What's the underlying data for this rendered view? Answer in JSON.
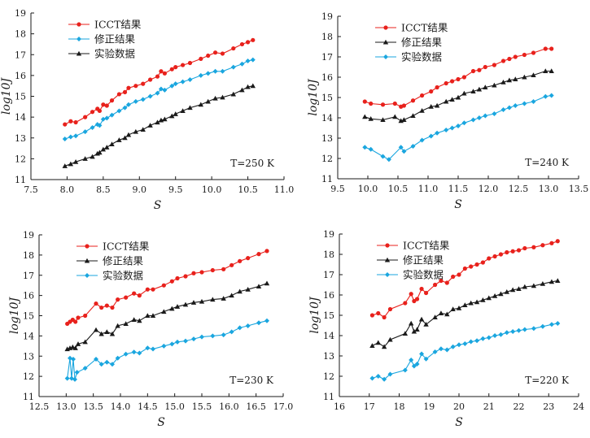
{
  "colors": {
    "red": "#e8211c",
    "cyan": "#1aa6df",
    "black": "#1a1a1a"
  },
  "chart_data": [
    {
      "type": "line",
      "annotation": "T=250 K",
      "xlabel": "S",
      "ylabel": "log10J",
      "xlim": [
        7.5,
        11.0
      ],
      "ylim": [
        11,
        19
      ],
      "xticks": [
        "7.5",
        "8.0",
        "8.5",
        "9.0",
        "9.5",
        "10.0",
        "10.5",
        "11.0"
      ],
      "yticks": [
        "11",
        "12",
        "13",
        "14",
        "15",
        "16",
        "17",
        "18",
        "19"
      ],
      "legend_loc": "top-left",
      "series": [
        {
          "name": "ICCT结果",
          "color": "red",
          "marker": "circle",
          "x": [
            7.97,
            8.05,
            8.12,
            8.25,
            8.35,
            8.42,
            8.45,
            8.5,
            8.55,
            8.62,
            8.72,
            8.8,
            8.85,
            8.95,
            9.05,
            9.15,
            9.25,
            9.3,
            9.35,
            9.45,
            9.5,
            9.6,
            9.7,
            9.85,
            9.95,
            10.05,
            10.15,
            10.3,
            10.42,
            10.5,
            10.57
          ],
          "y": [
            13.65,
            13.8,
            13.75,
            14.0,
            14.25,
            14.4,
            14.3,
            14.6,
            14.55,
            14.8,
            15.1,
            15.2,
            15.4,
            15.5,
            15.6,
            15.8,
            15.95,
            16.2,
            16.1,
            16.3,
            16.4,
            16.5,
            16.6,
            16.8,
            16.95,
            17.1,
            17.05,
            17.3,
            17.5,
            17.6,
            17.7
          ]
        },
        {
          "name": "修正结果",
          "color": "cyan",
          "marker": "diamond",
          "x": [
            7.97,
            8.05,
            8.12,
            8.25,
            8.35,
            8.42,
            8.45,
            8.5,
            8.55,
            8.62,
            8.72,
            8.8,
            8.85,
            8.95,
            9.05,
            9.15,
            9.25,
            9.3,
            9.35,
            9.45,
            9.5,
            9.6,
            9.7,
            9.85,
            9.95,
            10.05,
            10.15,
            10.3,
            10.42,
            10.5,
            10.57
          ],
          "y": [
            12.95,
            13.05,
            13.1,
            13.3,
            13.5,
            13.65,
            13.6,
            13.9,
            13.95,
            14.1,
            14.3,
            14.45,
            14.6,
            14.75,
            14.85,
            15.0,
            15.15,
            15.35,
            15.3,
            15.5,
            15.6,
            15.7,
            15.8,
            16.0,
            16.1,
            16.2,
            16.2,
            16.4,
            16.55,
            16.7,
            16.75
          ]
        },
        {
          "name": "实验数据",
          "color": "black",
          "marker": "triangle",
          "x": [
            7.97,
            8.05,
            8.12,
            8.25,
            8.35,
            8.42,
            8.45,
            8.5,
            8.55,
            8.62,
            8.72,
            8.8,
            8.85,
            8.95,
            9.05,
            9.15,
            9.25,
            9.3,
            9.35,
            9.45,
            9.5,
            9.6,
            9.7,
            9.85,
            9.95,
            10.05,
            10.15,
            10.3,
            10.42,
            10.5,
            10.57
          ],
          "y": [
            11.65,
            11.75,
            11.85,
            12.0,
            12.1,
            12.25,
            12.3,
            12.45,
            12.55,
            12.7,
            12.9,
            13.0,
            13.15,
            13.3,
            13.4,
            13.6,
            13.75,
            13.85,
            13.9,
            14.05,
            14.15,
            14.3,
            14.45,
            14.6,
            14.75,
            14.9,
            14.95,
            15.1,
            15.3,
            15.45,
            15.5
          ]
        }
      ]
    },
    {
      "type": "line",
      "annotation": "T=240 K",
      "xlabel": "S",
      "ylabel": "log10J",
      "xlim": [
        9.5,
        13.5
      ],
      "ylim": [
        11,
        19
      ],
      "xticks": [
        "9.5",
        "10.0",
        "10.5",
        "11.0",
        "11.5",
        "12.0",
        "12.5",
        "13.0",
        "13.5"
      ],
      "yticks": [
        "11",
        "12",
        "13",
        "14",
        "15",
        "16",
        "17",
        "18",
        "19"
      ],
      "legend_loc": "top-left",
      "series": [
        {
          "name": "ICCT结果",
          "color": "red",
          "marker": "circle",
          "x": [
            9.95,
            10.05,
            10.25,
            10.45,
            10.55,
            10.6,
            10.75,
            10.9,
            11.05,
            11.15,
            11.3,
            11.4,
            11.5,
            11.6,
            11.75,
            11.85,
            11.95,
            12.1,
            12.25,
            12.35,
            12.45,
            12.6,
            12.75,
            12.95,
            13.05
          ],
          "y": [
            14.8,
            14.7,
            14.65,
            14.7,
            14.55,
            14.6,
            14.85,
            15.1,
            15.3,
            15.5,
            15.7,
            15.8,
            15.9,
            16.0,
            16.3,
            16.35,
            16.5,
            16.6,
            16.8,
            16.9,
            17.0,
            17.1,
            17.2,
            17.4,
            17.4
          ]
        },
        {
          "name": "修正结果",
          "color": "black",
          "marker": "triangle",
          "x": [
            9.95,
            10.05,
            10.25,
            10.45,
            10.55,
            10.6,
            10.75,
            10.9,
            11.05,
            11.15,
            11.3,
            11.4,
            11.5,
            11.6,
            11.75,
            11.85,
            11.95,
            12.1,
            12.25,
            12.35,
            12.45,
            12.6,
            12.75,
            12.95,
            13.05
          ],
          "y": [
            14.05,
            13.95,
            13.9,
            14.05,
            13.85,
            13.9,
            14.1,
            14.35,
            14.55,
            14.6,
            14.8,
            14.9,
            15.0,
            15.2,
            15.3,
            15.4,
            15.5,
            15.6,
            15.75,
            15.85,
            15.9,
            16.0,
            16.1,
            16.3,
            16.3
          ]
        },
        {
          "name": "实验数据",
          "color": "cyan",
          "marker": "diamond",
          "x": [
            9.95,
            10.05,
            10.25,
            10.35,
            10.55,
            10.6,
            10.75,
            10.9,
            11.05,
            11.15,
            11.3,
            11.4,
            11.5,
            11.6,
            11.75,
            11.85,
            11.95,
            12.1,
            12.25,
            12.35,
            12.45,
            12.6,
            12.75,
            12.95,
            13.05
          ],
          "y": [
            12.55,
            12.45,
            12.1,
            11.95,
            12.55,
            12.35,
            12.6,
            12.9,
            13.1,
            13.25,
            13.4,
            13.5,
            13.6,
            13.75,
            13.9,
            14.0,
            14.1,
            14.2,
            14.4,
            14.5,
            14.6,
            14.7,
            14.8,
            15.05,
            15.1
          ]
        }
      ]
    },
    {
      "type": "line",
      "annotation": "T=230 K",
      "xlabel": "S",
      "ylabel": "log10J",
      "xlim": [
        12.5,
        17.0
      ],
      "ylim": [
        11,
        19
      ],
      "xticks": [
        "12.5",
        "13.0",
        "13.5",
        "14.0",
        "14.5",
        "15.0",
        "15.5",
        "16.0",
        "16.5",
        "17.0"
      ],
      "yticks": [
        "11",
        "12",
        "13",
        "14",
        "15",
        "16",
        "17",
        "18",
        "19"
      ],
      "legend_loc": "top-left",
      "series": [
        {
          "name": "ICCT结果",
          "color": "red",
          "marker": "circle",
          "x": [
            13.02,
            13.07,
            13.12,
            13.17,
            13.22,
            13.35,
            13.55,
            13.65,
            13.75,
            13.85,
            13.95,
            14.1,
            14.25,
            14.35,
            14.5,
            14.6,
            14.8,
            14.95,
            15.05,
            15.2,
            15.35,
            15.5,
            15.7,
            15.9,
            16.05,
            16.2,
            16.35,
            16.55,
            16.7
          ],
          "y": [
            14.6,
            14.7,
            14.8,
            14.7,
            14.9,
            15.0,
            15.6,
            15.4,
            15.5,
            15.4,
            15.8,
            15.9,
            16.1,
            16.0,
            16.3,
            16.3,
            16.5,
            16.7,
            16.85,
            16.95,
            17.1,
            17.15,
            17.25,
            17.3,
            17.5,
            17.7,
            17.85,
            18.05,
            18.2
          ]
        },
        {
          "name": "修正结果",
          "color": "black",
          "marker": "triangle",
          "x": [
            13.02,
            13.07,
            13.12,
            13.17,
            13.22,
            13.35,
            13.55,
            13.65,
            13.75,
            13.85,
            13.95,
            14.1,
            14.25,
            14.35,
            14.5,
            14.6,
            14.8,
            14.95,
            15.05,
            15.2,
            15.35,
            15.5,
            15.7,
            15.9,
            16.05,
            16.2,
            16.35,
            16.55,
            16.7
          ],
          "y": [
            13.35,
            13.4,
            13.45,
            13.4,
            13.6,
            13.7,
            14.3,
            14.1,
            14.2,
            14.1,
            14.5,
            14.6,
            14.8,
            14.75,
            15.0,
            15.0,
            15.2,
            15.35,
            15.45,
            15.55,
            15.65,
            15.7,
            15.8,
            15.85,
            16.0,
            16.2,
            16.3,
            16.45,
            16.6
          ]
        },
        {
          "name": "实验数据",
          "color": "cyan",
          "marker": "diamond",
          "x": [
            13.02,
            13.07,
            13.1,
            13.13,
            13.16,
            13.2,
            13.35,
            13.55,
            13.65,
            13.75,
            13.85,
            13.95,
            14.1,
            14.25,
            14.35,
            14.5,
            14.6,
            14.8,
            14.95,
            15.05,
            15.2,
            15.35,
            15.5,
            15.7,
            15.9,
            16.05,
            16.2,
            16.35,
            16.55,
            16.7
          ],
          "y": [
            11.9,
            12.9,
            11.9,
            12.85,
            11.85,
            12.2,
            12.4,
            12.85,
            12.6,
            12.7,
            12.6,
            12.9,
            13.1,
            13.2,
            13.15,
            13.4,
            13.35,
            13.5,
            13.6,
            13.7,
            13.75,
            13.85,
            13.95,
            14.0,
            14.05,
            14.2,
            14.4,
            14.5,
            14.65,
            14.75
          ]
        }
      ]
    },
    {
      "type": "line",
      "annotation": "T=220 K",
      "xlabel": "S",
      "ylabel": "log10J",
      "xlim": [
        16,
        24
      ],
      "ylim": [
        11,
        19
      ],
      "xticks": [
        "16",
        "17",
        "18",
        "19",
        "20",
        "21",
        "22",
        "23",
        "24"
      ],
      "yticks": [
        "11",
        "12",
        "13",
        "14",
        "15",
        "16",
        "17",
        "18",
        "19"
      ],
      "legend_loc": "top-left",
      "series": [
        {
          "name": "ICCT结果",
          "color": "red",
          "marker": "circle",
          "x": [
            17.1,
            17.3,
            17.5,
            17.7,
            18.2,
            18.4,
            18.5,
            18.6,
            18.75,
            18.9,
            19.2,
            19.4,
            19.6,
            19.8,
            20.0,
            20.2,
            20.4,
            20.6,
            20.8,
            21.0,
            21.2,
            21.4,
            21.6,
            21.8,
            22.0,
            22.2,
            22.5,
            22.8,
            23.1,
            23.3
          ],
          "y": [
            15.0,
            15.1,
            14.9,
            15.3,
            15.6,
            16.05,
            15.7,
            15.8,
            16.3,
            16.1,
            16.5,
            16.7,
            16.6,
            16.9,
            17.0,
            17.3,
            17.4,
            17.5,
            17.6,
            17.8,
            17.9,
            18.0,
            18.1,
            18.15,
            18.2,
            18.3,
            18.35,
            18.45,
            18.55,
            18.65
          ]
        },
        {
          "name": "修正结果",
          "color": "black",
          "marker": "triangle",
          "x": [
            17.1,
            17.3,
            17.5,
            17.7,
            18.2,
            18.4,
            18.5,
            18.6,
            18.75,
            18.9,
            19.2,
            19.4,
            19.6,
            19.8,
            20.0,
            20.2,
            20.4,
            20.6,
            20.8,
            21.0,
            21.2,
            21.4,
            21.6,
            21.8,
            22.0,
            22.2,
            22.5,
            22.8,
            23.1,
            23.3
          ],
          "y": [
            13.5,
            13.65,
            13.45,
            13.8,
            14.1,
            14.6,
            14.2,
            14.3,
            14.8,
            14.55,
            14.9,
            15.1,
            15.05,
            15.3,
            15.35,
            15.5,
            15.6,
            15.65,
            15.75,
            15.85,
            15.95,
            16.05,
            16.15,
            16.25,
            16.3,
            16.4,
            16.45,
            16.55,
            16.65,
            16.7
          ]
        },
        {
          "name": "实验数据",
          "color": "cyan",
          "marker": "diamond",
          "x": [
            17.1,
            17.3,
            17.5,
            17.7,
            18.2,
            18.4,
            18.5,
            18.6,
            18.75,
            18.9,
            19.2,
            19.4,
            19.6,
            19.8,
            20.0,
            20.2,
            20.4,
            20.6,
            20.8,
            21.0,
            21.2,
            21.4,
            21.6,
            21.8,
            22.0,
            22.2,
            22.5,
            22.8,
            23.1,
            23.3
          ],
          "y": [
            11.9,
            12.0,
            11.85,
            12.1,
            12.3,
            12.8,
            12.5,
            12.6,
            13.1,
            12.85,
            13.2,
            13.35,
            13.3,
            13.45,
            13.55,
            13.6,
            13.7,
            13.75,
            13.85,
            13.9,
            14.0,
            14.05,
            14.15,
            14.2,
            14.25,
            14.3,
            14.35,
            14.45,
            14.55,
            14.6
          ]
        }
      ]
    }
  ]
}
